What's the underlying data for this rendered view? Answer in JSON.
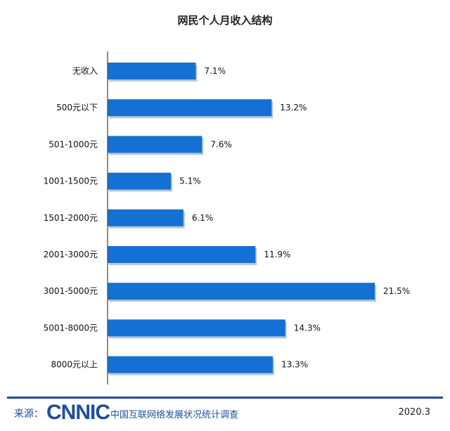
{
  "chart_data": {
    "type": "bar",
    "orientation": "horizontal",
    "title": "网民个人月收入结构",
    "categories": [
      "无收入",
      "500元以下",
      "501-1000元",
      "1001-1500元",
      "1501-2000元",
      "2001-3000元",
      "3001-5000元",
      "5001-8000元",
      "8000元以上"
    ],
    "values": [
      7.1,
      13.2,
      7.6,
      5.1,
      6.1,
      11.9,
      21.5,
      14.3,
      13.3
    ],
    "value_labels": [
      "7.1%",
      "13.2%",
      "7.6%",
      "5.1%",
      "6.1%",
      "11.9%",
      "21.5%",
      "14.3%",
      "13.3%"
    ],
    "xlim": [
      0,
      21.5
    ],
    "grid": false,
    "bar_color": "#1470d2"
  },
  "footer": {
    "source_label": "来源：",
    "logo_text": "CNNIC",
    "org_name": "中国互联网络发展状况统计调查",
    "date": "2020.3"
  }
}
